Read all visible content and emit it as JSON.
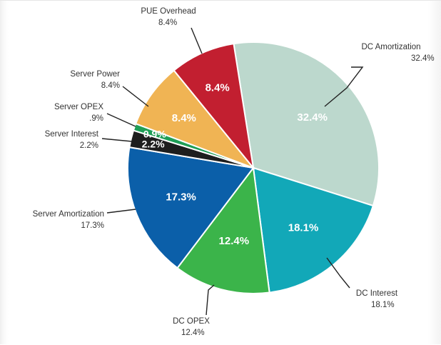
{
  "chart_data": {
    "type": "pie",
    "slices": [
      {
        "label": "DC Amortization",
        "value": 32.4,
        "display": "32.4%",
        "color": "#bcd8cd"
      },
      {
        "label": "DC Interest",
        "value": 18.1,
        "display": "18.1%",
        "color": "#12a8b8"
      },
      {
        "label": "DC OPEX",
        "value": 12.4,
        "display": "12.4%",
        "color": "#3bb44a"
      },
      {
        "label": "Server Amortization",
        "value": 17.3,
        "display": "17.3%",
        "color": "#0b5fa9"
      },
      {
        "label": "Server Interest",
        "value": 2.2,
        "display": "2.2%",
        "color": "#1e1e1e"
      },
      {
        "label": "Server OPEX",
        "value": 0.9,
        "display": ".9%",
        "inner_display": "0.9%",
        "color": "#1f9e56"
      },
      {
        "label": "Server Power",
        "value": 8.4,
        "display": "8.4%",
        "color": "#f0b454"
      },
      {
        "label": "PUE Overhead",
        "value": 8.4,
        "display": "8.4%",
        "color": "#c21f30"
      }
    ]
  }
}
